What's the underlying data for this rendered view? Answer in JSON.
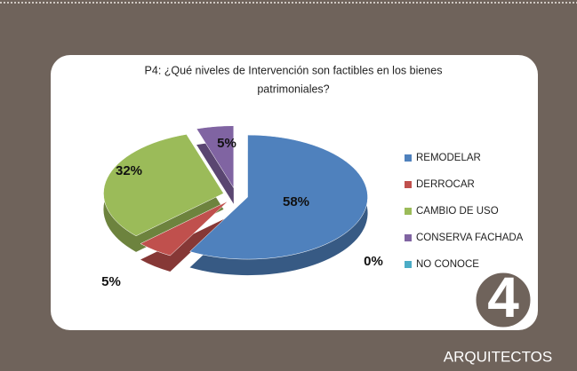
{
  "chart_data": {
    "type": "pie",
    "title": "P4: ¿Qué niveles de Intervención son factibles en los bienes patrimoniales?",
    "categories": [
      "REMODELAR",
      "DERROCAR",
      "CAMBIO DE USO",
      "CONSERVA FACHADA",
      "NO CONOCE"
    ],
    "values": [
      58,
      5,
      32,
      5,
      0
    ],
    "value_labels": [
      "58%",
      "5%",
      "32%",
      "5%",
      "0%"
    ],
    "colors": [
      "#4f81bd",
      "#c0504d",
      "#9bbb59",
      "#8064a2",
      "#4bacc6"
    ],
    "legend": "right"
  },
  "badge": "4",
  "footer": "ARQUITECTOS"
}
